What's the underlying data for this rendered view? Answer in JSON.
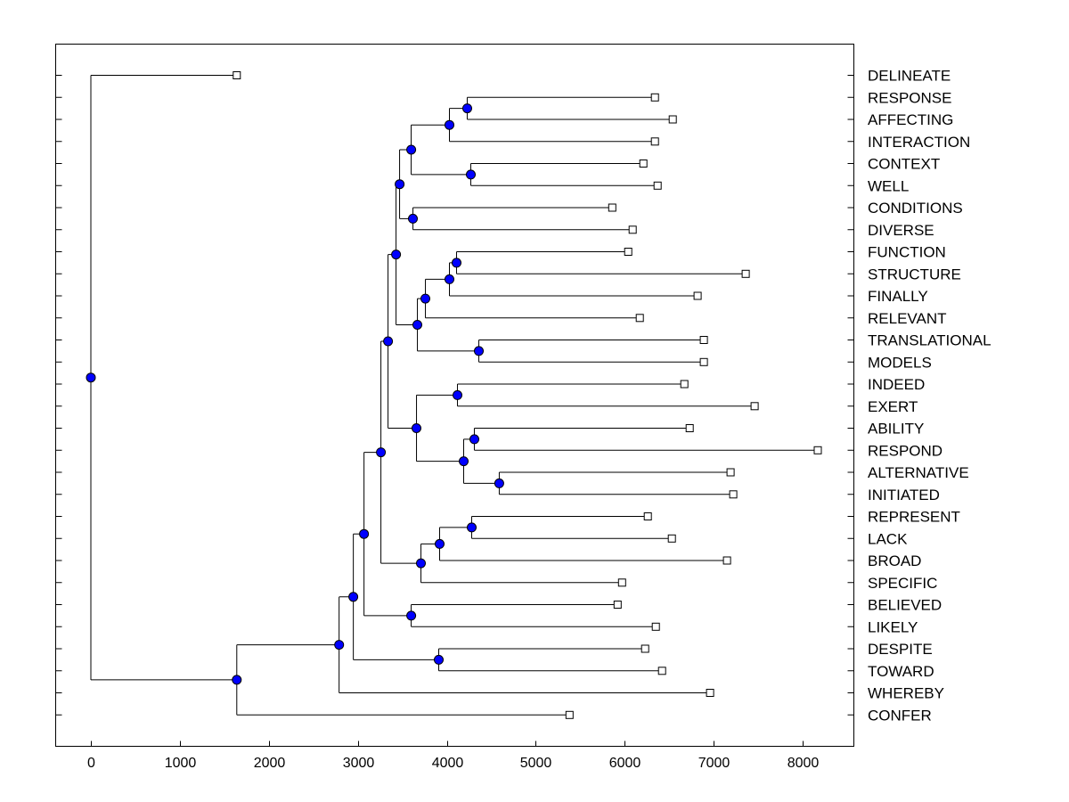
{
  "chart_data": {
    "type": "dendrogram",
    "title": "",
    "xlabel": "",
    "ylabel": "",
    "xlim": [
      -400,
      8600
    ],
    "x_ticks": [
      0,
      1000,
      2000,
      3000,
      4000,
      5000,
      6000,
      7000,
      8000
    ],
    "x_tick_labels": [
      "0",
      "1000",
      "2000",
      "3000",
      "4000",
      "5000",
      "6000",
      "7000",
      "8000"
    ],
    "node_color": "#0000ff",
    "leaves": [
      {
        "label": "DELINEATE",
        "height": 1640
      },
      {
        "label": "RESPONSE",
        "height": 6340
      },
      {
        "label": "AFFECTING",
        "height": 6540
      },
      {
        "label": "INTERACTION",
        "height": 6340
      },
      {
        "label": "CONTEXT",
        "height": 6210
      },
      {
        "label": "WELL",
        "height": 6370
      },
      {
        "label": "CONDITIONS",
        "height": 5860
      },
      {
        "label": "DIVERSE",
        "height": 6090
      },
      {
        "label": "FUNCTION",
        "height": 6040
      },
      {
        "label": "STRUCTURE",
        "height": 7360
      },
      {
        "label": "FINALLY",
        "height": 6820
      },
      {
        "label": "RELEVANT",
        "height": 6170
      },
      {
        "label": "TRANSLATIONAL",
        "height": 6890
      },
      {
        "label": "MODELS",
        "height": 6890
      },
      {
        "label": "INDEED",
        "height": 6670
      },
      {
        "label": "EXERT",
        "height": 7460
      },
      {
        "label": "ABILITY",
        "height": 6730
      },
      {
        "label": "RESPOND",
        "height": 8170
      },
      {
        "label": "ALTERNATIVE",
        "height": 7190
      },
      {
        "label": "INITIATED",
        "height": 7220
      },
      {
        "label": "REPRESENT",
        "height": 6260
      },
      {
        "label": "LACK",
        "height": 6530
      },
      {
        "label": "BROAD",
        "height": 7150
      },
      {
        "label": "SPECIFIC",
        "height": 5970
      },
      {
        "label": "BELIEVED",
        "height": 5920
      },
      {
        "label": "LIKELY",
        "height": 6350
      },
      {
        "label": "DESPITE",
        "height": 6230
      },
      {
        "label": "TOWARD",
        "height": 6420
      },
      {
        "label": "WHEREBY",
        "height": 6960
      },
      {
        "label": "CONFER",
        "height": 5380
      }
    ],
    "merges": [
      {
        "id": "n1",
        "height": 4230,
        "children": [
          "l1",
          "l2"
        ]
      },
      {
        "id": "n2",
        "height": 4030,
        "children": [
          "n1",
          "l3"
        ]
      },
      {
        "id": "n3",
        "height": 4270,
        "children": [
          "l4",
          "l5"
        ]
      },
      {
        "id": "n4",
        "height": 3600,
        "children": [
          "n2",
          "n3"
        ]
      },
      {
        "id": "n5",
        "height": 3620,
        "children": [
          "l6",
          "l7"
        ]
      },
      {
        "id": "n6",
        "height": 3470,
        "children": [
          "n4",
          "n5"
        ]
      },
      {
        "id": "n7",
        "height": 4110,
        "children": [
          "l8",
          "l9"
        ]
      },
      {
        "id": "n8",
        "height": 4030,
        "children": [
          "n7",
          "l10"
        ]
      },
      {
        "id": "n9",
        "height": 3760,
        "children": [
          "n8",
          "l11"
        ]
      },
      {
        "id": "n10",
        "height": 4360,
        "children": [
          "l12",
          "l13"
        ]
      },
      {
        "id": "n11",
        "height": 3670,
        "children": [
          "n9",
          "n10"
        ]
      },
      {
        "id": "n12",
        "height": 3430,
        "children": [
          "n6",
          "n11"
        ]
      },
      {
        "id": "n13",
        "height": 4120,
        "children": [
          "l14",
          "l15"
        ]
      },
      {
        "id": "n14",
        "height": 4310,
        "children": [
          "l16",
          "l17"
        ]
      },
      {
        "id": "n15",
        "height": 4590,
        "children": [
          "l18",
          "l19"
        ]
      },
      {
        "id": "n16",
        "height": 4190,
        "children": [
          "n14",
          "n15"
        ]
      },
      {
        "id": "n17",
        "height": 3660,
        "children": [
          "n13",
          "n16"
        ]
      },
      {
        "id": "n18",
        "height": 3340,
        "children": [
          "n12",
          "n17"
        ]
      },
      {
        "id": "n19",
        "height": 4280,
        "children": [
          "l20",
          "l21"
        ]
      },
      {
        "id": "n20",
        "height": 3920,
        "children": [
          "n19",
          "l22"
        ]
      },
      {
        "id": "n21",
        "height": 3710,
        "children": [
          "n20",
          "l23"
        ]
      },
      {
        "id": "n22",
        "height": 3260,
        "children": [
          "n18",
          "n21"
        ]
      },
      {
        "id": "n23",
        "height": 3600,
        "children": [
          "l24",
          "l25"
        ]
      },
      {
        "id": "n24",
        "height": 3070,
        "children": [
          "n22",
          "n23"
        ]
      },
      {
        "id": "n25",
        "height": 3910,
        "children": [
          "l26",
          "l27"
        ]
      },
      {
        "id": "n26",
        "height": 2950,
        "children": [
          "n24",
          "n25"
        ]
      },
      {
        "id": "n27",
        "height": 2790,
        "children": [
          "n26",
          "l28"
        ]
      },
      {
        "id": "n28",
        "height": 1640,
        "children": [
          "n27",
          "l29"
        ]
      },
      {
        "id": "n29",
        "height": 0,
        "children": [
          "l0",
          "n28"
        ]
      }
    ]
  }
}
